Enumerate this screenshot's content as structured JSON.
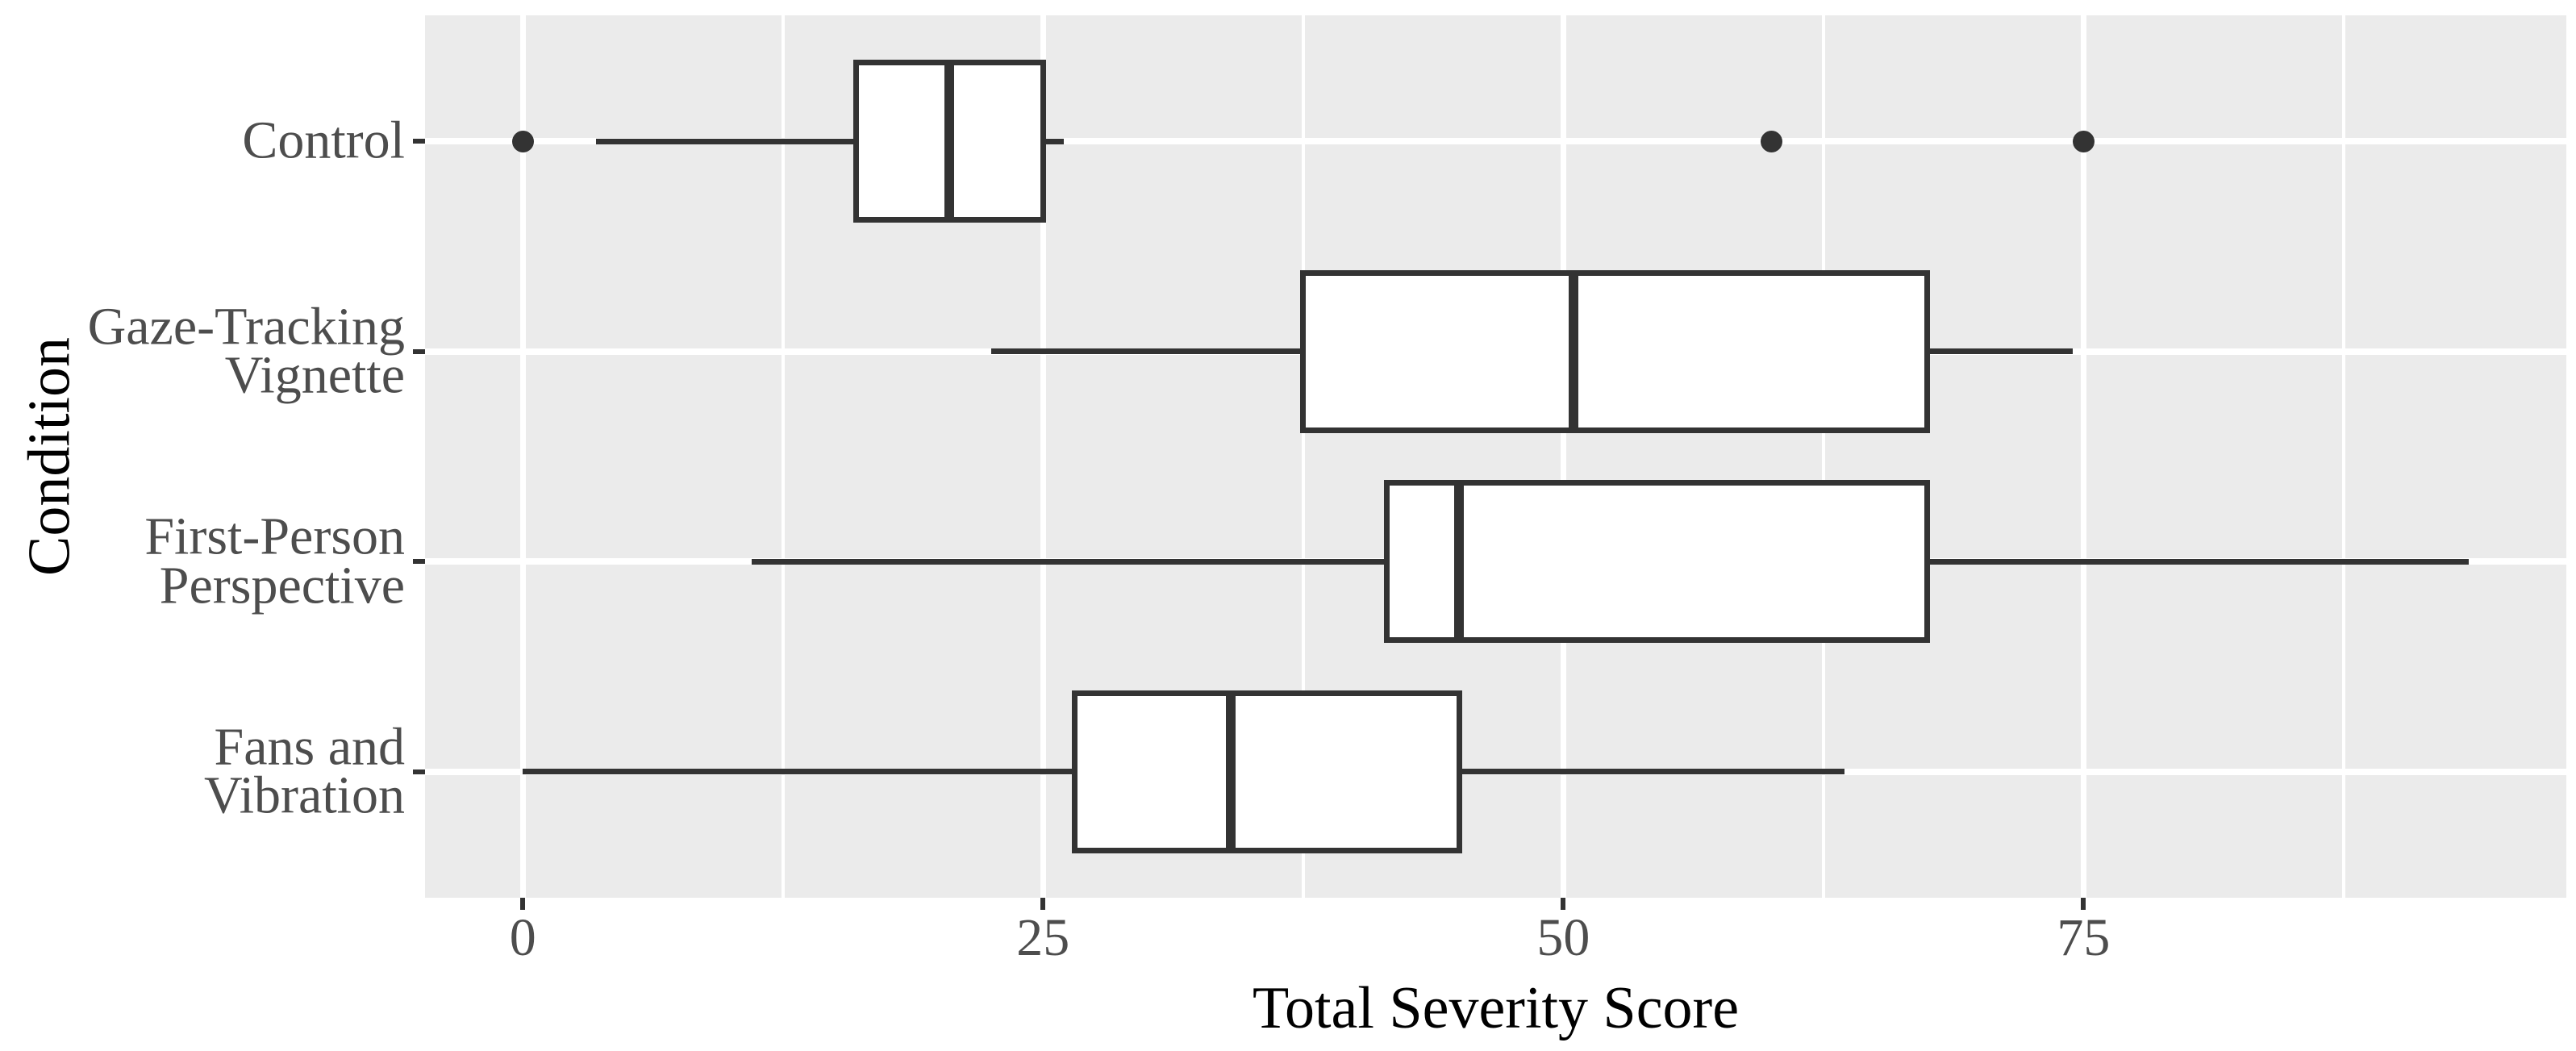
{
  "chart_data": {
    "type": "boxplot",
    "orientation": "horizontal",
    "title": "",
    "xlabel": "Total Severity Score",
    "ylabel": "Condition",
    "categories": [
      "Control",
      "Gaze-Tracking Vignette",
      "First-Person Perspective",
      "Fans and Vibration"
    ],
    "category_label_lines": [
      [
        "Control"
      ],
      [
        "Gaze-Tracking",
        "Vignette"
      ],
      [
        "First-Person",
        "Perspective"
      ],
      [
        "Fans and",
        "Vibration"
      ]
    ],
    "series": [
      {
        "name": "Control",
        "min": 3.5,
        "q1": 16,
        "median": 20.5,
        "q3": 25,
        "max": 26,
        "outliers": [
          0,
          60,
          75
        ]
      },
      {
        "name": "Gaze-Tracking Vignette",
        "min": 22.5,
        "q1": 37.5,
        "median": 50.5,
        "q3": 67.5,
        "max": 74.5,
        "outliers": []
      },
      {
        "name": "First-Person Perspective",
        "min": 11,
        "q1": 41.5,
        "median": 45,
        "q3": 67.5,
        "max": 93.5,
        "outliers": []
      },
      {
        "name": "Fans and Vibration",
        "min": 0,
        "q1": 26.5,
        "median": 34,
        "q3": 45,
        "max": 63.5,
        "outliers": []
      }
    ],
    "x_ticks": [
      0,
      25,
      50,
      75
    ],
    "x_minor_ticks": [
      12.5,
      37.5,
      62.5,
      87.5
    ],
    "xlim": [
      -4.7,
      98.2
    ],
    "grid": true,
    "legend": false,
    "colors": {
      "panel_background": "#EBEBEB",
      "gridline": "#FFFFFF",
      "box_stroke": "#333333",
      "box_fill": "#FFFFFF",
      "outlier_dot": "#333333",
      "tick_mark": "#333333",
      "tick_label": "#4D4D4D",
      "axis_title": "#000000"
    }
  }
}
